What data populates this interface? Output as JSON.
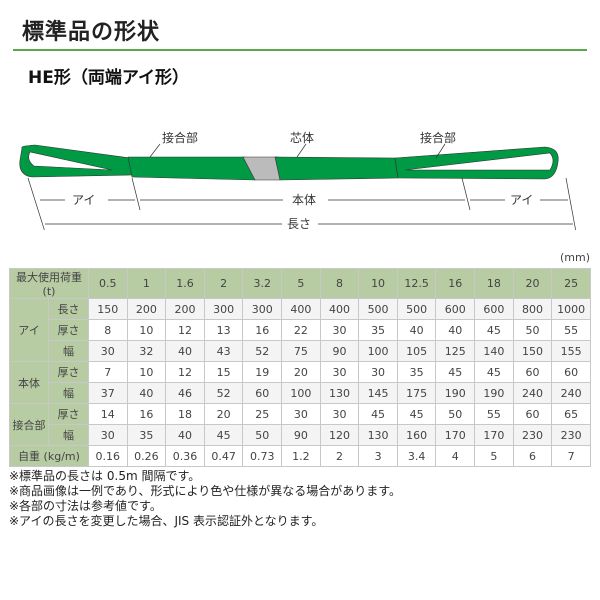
{
  "title": "標準品の形状",
  "subtitle": "HE形（両端アイ形）",
  "diagram": {
    "labels": {
      "joint_left": "接合部",
      "core": "芯体",
      "joint_right": "接合部",
      "eye_left": "アイ",
      "body": "本体",
      "eye_right": "アイ",
      "length": "長さ"
    },
    "colors": {
      "sling": "#009944",
      "core": "#bbbbbb"
    }
  },
  "table": {
    "unit": "(mm)",
    "header_label": "最大使用荷重 (t)",
    "loads": [
      "0.5",
      "1",
      "1.6",
      "2",
      "3.2",
      "5",
      "8",
      "10",
      "12.5",
      "16",
      "18",
      "20",
      "25"
    ],
    "groups": [
      {
        "name": "アイ",
        "rows": [
          {
            "label": "長さ",
            "values": [
              "150",
              "200",
              "200",
              "300",
              "300",
              "400",
              "400",
              "500",
              "500",
              "600",
              "600",
              "800",
              "1000"
            ]
          },
          {
            "label": "厚さ",
            "values": [
              "8",
              "10",
              "12",
              "13",
              "16",
              "22",
              "30",
              "35",
              "40",
              "40",
              "45",
              "50",
              "55"
            ]
          },
          {
            "label": "幅",
            "values": [
              "30",
              "32",
              "40",
              "43",
              "52",
              "75",
              "90",
              "100",
              "105",
              "125",
              "140",
              "150",
              "155"
            ]
          }
        ]
      },
      {
        "name": "本体",
        "rows": [
          {
            "label": "厚さ",
            "values": [
              "7",
              "10",
              "12",
              "15",
              "19",
              "20",
              "30",
              "30",
              "35",
              "45",
              "45",
              "60",
              "60"
            ]
          },
          {
            "label": "幅",
            "values": [
              "37",
              "40",
              "46",
              "52",
              "60",
              "100",
              "130",
              "145",
              "175",
              "190",
              "190",
              "240",
              "240"
            ]
          }
        ]
      },
      {
        "name": "接合部",
        "rows": [
          {
            "label": "厚さ",
            "values": [
              "14",
              "16",
              "18",
              "20",
              "25",
              "30",
              "30",
              "45",
              "45",
              "50",
              "55",
              "60",
              "65"
            ]
          },
          {
            "label": "幅",
            "values": [
              "30",
              "35",
              "40",
              "45",
              "50",
              "90",
              "120",
              "130",
              "160",
              "170",
              "170",
              "230",
              "230"
            ]
          }
        ]
      }
    ],
    "weight": {
      "label": "自重 (kg/m)",
      "values": [
        "0.16",
        "0.26",
        "0.36",
        "0.47",
        "0.73",
        "1.2",
        "2",
        "3",
        "3.4",
        "4",
        "5",
        "6",
        "7"
      ]
    }
  },
  "notes": [
    "※標準品の長さは 0.5m 間隔です。",
    "※商品画像は一例であり、形式により色や仕様が異なる場合があります。",
    "※各部の寸法は参考値です。",
    "※アイの長さを変更した場合、JIS 表示認証外となります。"
  ]
}
